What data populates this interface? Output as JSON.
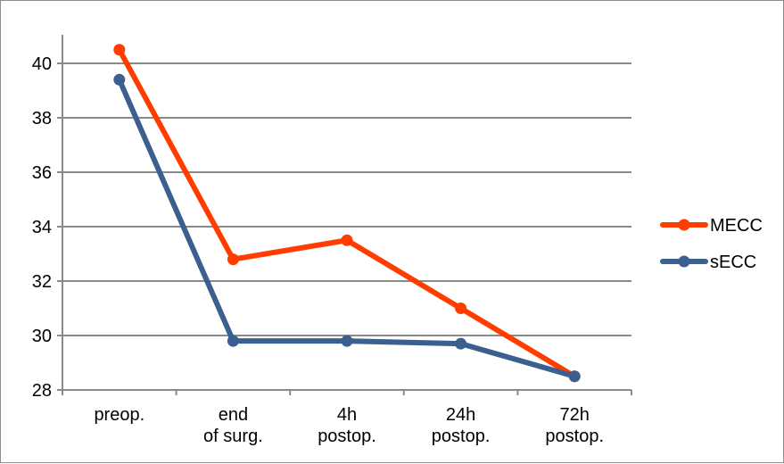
{
  "chart_data": {
    "type": "line",
    "title": "",
    "xlabel": "",
    "ylabel": "",
    "categories": [
      [
        "preop."
      ],
      [
        "end",
        "of surg."
      ],
      [
        "4h",
        "postop."
      ],
      [
        "24h",
        "postop."
      ],
      [
        "72h",
        "postop."
      ]
    ],
    "ylim": [
      28,
      41
    ],
    "yticks": [
      28,
      30,
      32,
      34,
      36,
      38,
      40
    ],
    "grid": true,
    "legend_position": "right",
    "series": [
      {
        "name": "MECC",
        "color": "#ff3d00",
        "values": [
          40.5,
          32.8,
          33.5,
          31.0,
          28.5
        ]
      },
      {
        "name": "sECC",
        "color": "#3b5f8f",
        "values": [
          39.4,
          29.8,
          29.8,
          29.7,
          28.5
        ]
      }
    ]
  }
}
